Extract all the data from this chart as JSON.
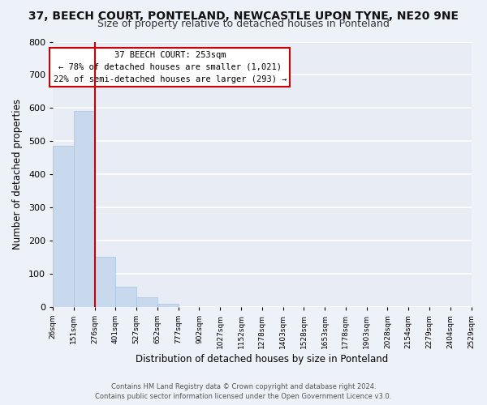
{
  "title": "37, BEECH COURT, PONTELAND, NEWCASTLE UPON TYNE, NE20 9NE",
  "subtitle": "Size of property relative to detached houses in Ponteland",
  "xlabel": "Distribution of detached houses by size in Ponteland",
  "ylabel": "Number of detached properties",
  "bar_values": [
    487,
    592,
    152,
    62,
    30,
    10,
    0,
    0,
    0,
    0,
    0,
    0,
    0,
    0,
    0,
    0,
    0,
    0,
    0,
    0
  ],
  "tick_labels": [
    "26sqm",
    "151sqm",
    "276sqm",
    "401sqm",
    "527sqm",
    "652sqm",
    "777sqm",
    "902sqm",
    "1027sqm",
    "1152sqm",
    "1278sqm",
    "1403sqm",
    "1528sqm",
    "1653sqm",
    "1778sqm",
    "1903sqm",
    "2028sqm",
    "2154sqm",
    "2279sqm",
    "2404sqm",
    "2529sqm"
  ],
  "bar_color": "#c8d9ee",
  "bar_edge_color": "#aac4e0",
  "vline_x": 2,
  "vline_color": "#cc0000",
  "annotation_title": "37 BEECH COURT: 253sqm",
  "annotation_line1": "← 78% of detached houses are smaller (1,021)",
  "annotation_line2": "22% of semi-detached houses are larger (293) →",
  "annotation_box_color": "#ffffff",
  "annotation_box_edge": "#cc0000",
  "ylim": [
    0,
    800
  ],
  "yticks": [
    0,
    100,
    200,
    300,
    400,
    500,
    600,
    700,
    800
  ],
  "footer1": "Contains HM Land Registry data © Crown copyright and database right 2024.",
  "footer2": "Contains public sector information licensed under the Open Government Licence v3.0.",
  "bg_color": "#edf1f8",
  "plot_bg_color": "#e8edf5",
  "grid_color": "#ffffff",
  "title_fontsize": 10,
  "subtitle_fontsize": 9,
  "num_bars": 20
}
